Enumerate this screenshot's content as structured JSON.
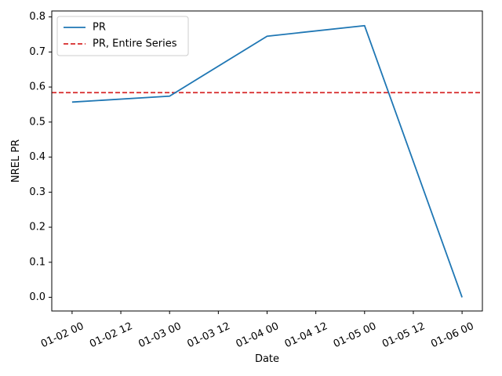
{
  "chart_data": {
    "type": "line",
    "xlabel": "Date",
    "ylabel": "NREL PR",
    "x_type": "datetime",
    "xlim": [
      "2019-01-01T19:00",
      "2019-01-06T05:00"
    ],
    "ylim": [
      -0.039,
      0.817
    ],
    "x_ticks": [
      {
        "value": "2019-01-02T00:00",
        "label": "01-02 00"
      },
      {
        "value": "2019-01-02T12:00",
        "label": "01-02 12"
      },
      {
        "value": "2019-01-03T00:00",
        "label": "01-03 00"
      },
      {
        "value": "2019-01-03T12:00",
        "label": "01-03 12"
      },
      {
        "value": "2019-01-04T00:00",
        "label": "01-04 00"
      },
      {
        "value": "2019-01-04T12:00",
        "label": "01-04 12"
      },
      {
        "value": "2019-01-05T00:00",
        "label": "01-05 00"
      },
      {
        "value": "2019-01-05T12:00",
        "label": "01-05 12"
      },
      {
        "value": "2019-01-06T00:00",
        "label": "01-06 00"
      }
    ],
    "y_ticks": [
      {
        "value": 0.0,
        "label": "0.0"
      },
      {
        "value": 0.1,
        "label": "0.1"
      },
      {
        "value": 0.2,
        "label": "0.2"
      },
      {
        "value": 0.3,
        "label": "0.3"
      },
      {
        "value": 0.4,
        "label": "0.4"
      },
      {
        "value": 0.5,
        "label": "0.5"
      },
      {
        "value": 0.6,
        "label": "0.6"
      },
      {
        "value": 0.7,
        "label": "0.7"
      },
      {
        "value": 0.8,
        "label": "0.8"
      }
    ],
    "series": [
      {
        "name": "PR",
        "color": "#1f77b4",
        "style": "solid",
        "x": [
          "2019-01-02T00:00",
          "2019-01-03T00:00",
          "2019-01-04T00:00",
          "2019-01-05T00:00",
          "2019-01-06T00:00"
        ],
        "y": [
          0.557,
          0.574,
          0.745,
          0.775,
          0.0
        ]
      }
    ],
    "hlines": [
      {
        "name": "PR, Entire Series",
        "color": "#d62728",
        "style": "dashed",
        "y": 0.584
      }
    ],
    "legend": {
      "position": "top-left"
    },
    "grid": false
  }
}
